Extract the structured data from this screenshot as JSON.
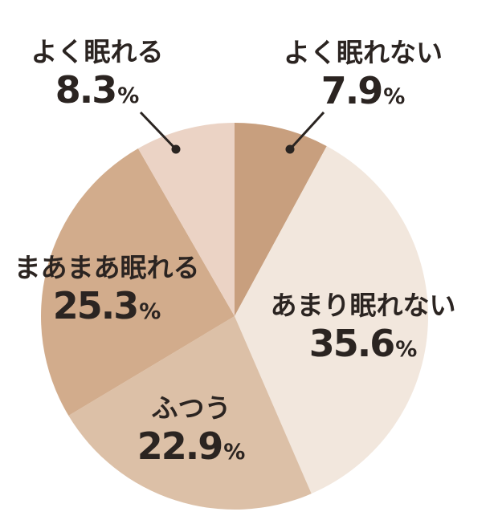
{
  "chart_data": {
    "type": "pie",
    "title": "",
    "unit": "%",
    "start_angle_deg": 0,
    "direction": "clockwise",
    "legend_position": "none",
    "background_color": "#ffffff",
    "text_color": "#2b2421",
    "leader_line_color": "#2a2421",
    "slices": [
      {
        "label": "よく眠れない",
        "value": 7.9,
        "display_value": "7.9",
        "unit": "%",
        "color": "#C89F7E",
        "label_placement": "outside-top-right"
      },
      {
        "label": "あまり眠れない",
        "value": 35.6,
        "display_value": "35.6",
        "unit": "%",
        "color": "#F2E7DD",
        "label_placement": "inside-right"
      },
      {
        "label": "ふつう",
        "value": 22.9,
        "display_value": "22.9",
        "unit": "%",
        "color": "#DCC0A7",
        "label_placement": "inside-bottom"
      },
      {
        "label": "まあまあ眠れる",
        "value": 25.3,
        "display_value": "25.3",
        "unit": "%",
        "color": "#D2AC8C",
        "label_placement": "inside-left"
      },
      {
        "label": "よく眠れる",
        "value": 8.3,
        "display_value": "8.3",
        "unit": "%",
        "color": "#EBD3C5",
        "label_placement": "outside-top-left"
      }
    ]
  }
}
